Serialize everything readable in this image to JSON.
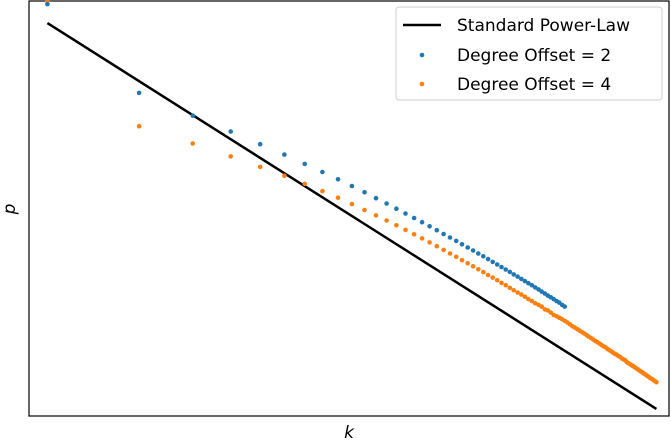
{
  "chart_data": {
    "type": "scatter",
    "xlabel": "k",
    "ylabel": "p",
    "xscale": "log",
    "yscale": "log",
    "xlim": [
      0.87,
      110
    ],
    "ylim": [
      2.2e-08,
      1.6
    ],
    "grid": false,
    "legend_position": "top-right",
    "legend": [
      "Standard Power-Law",
      "Degree Offset = 2",
      "Degree Offset = 4"
    ],
    "line": {
      "name": "Standard Power-Law",
      "x": [
        1,
        100
      ],
      "y": [
        0.61,
        3e-08
      ],
      "color": "#000000"
    },
    "series": [
      {
        "name": "Degree Offset = 2",
        "color": "#1f77b4",
        "x": [
          1,
          2,
          3,
          4,
          5,
          6,
          7,
          8,
          9,
          10,
          11,
          12,
          13,
          14,
          15,
          16,
          17,
          18,
          19,
          20,
          21,
          22,
          23,
          24,
          25,
          26,
          27,
          28,
          29,
          30,
          31,
          32,
          33,
          34,
          35,
          36,
          37,
          38,
          39,
          40,
          41,
          42,
          43,
          44,
          45,
          46,
          47,
          48,
          49,
          50
        ],
        "y": [
          1.4,
          0.029,
          0.0108,
          0.0054,
          0.0031,
          0.00197,
          0.00131,
          0.00092,
          0.00067,
          0.0005,
          0.00038,
          0.000294,
          0.000233,
          0.000186,
          0.000151,
          0.000124,
          0.000103,
          8.62e-05,
          7.27e-05,
          6.18e-05,
          5.29e-05,
          4.56e-05,
          3.94e-05,
          3.43e-05,
          3e-05,
          2.64e-05,
          2.33e-05,
          2.06e-05,
          1.83e-05,
          1.63e-05,
          1.46e-05,
          1.31e-05,
          1.18e-05,
          1.06e-05,
          9.6e-06,
          8.7e-06,
          7.9e-06,
          7.2e-06,
          6.6e-06,
          6e-06,
          5.5e-06,
          5e-06,
          4.6e-06,
          4.2e-06,
          3.9e-06,
          3.6e-06,
          3.3e-06,
          3.1e-06,
          2.8e-06,
          2.6e-06
        ]
      },
      {
        "name": "Degree Offset = 4",
        "color": "#ff7f0e",
        "x": [
          1,
          2,
          3,
          4,
          5,
          6,
          7,
          8,
          9,
          10,
          11,
          12,
          13,
          14,
          15,
          16,
          17,
          18,
          19,
          20,
          21,
          22,
          23,
          24,
          25,
          26,
          27,
          28,
          29,
          30,
          31,
          32,
          33,
          34,
          35,
          36,
          37,
          38,
          39,
          40,
          41,
          42,
          43,
          44,
          45,
          46,
          47,
          48,
          49,
          50,
          51,
          52,
          53,
          54,
          55,
          56,
          57,
          58,
          59,
          60,
          61,
          62,
          63,
          64,
          65,
          66,
          67,
          68,
          69,
          70,
          71,
          72,
          73,
          74,
          75,
          76,
          77,
          78,
          79,
          80,
          81,
          82,
          83,
          84,
          85,
          86,
          87,
          88,
          89,
          90,
          91,
          92,
          93,
          94,
          95,
          96,
          97,
          98,
          99,
          100
        ],
        "y": [
          1.6,
          0.0068,
          0.0032,
          0.00182,
          0.00115,
          0.00078,
          0.00055,
          0.0004,
          0.0003,
          0.000227,
          0.000176,
          0.000139,
          0.000111,
          9.02e-05,
          7.38e-05,
          6.1e-05,
          5.09e-05,
          4.27e-05,
          3.62e-05,
          3.08e-05,
          2.64e-05,
          2.28e-05,
          1.97e-05,
          1.72e-05,
          1.51e-05,
          1.32e-05,
          1.17e-05,
          1.03e-05,
          9.2e-06,
          8.2e-06,
          7.3e-06,
          6.6e-06,
          5.9e-06,
          5.3e-06,
          4.8e-06,
          4.4e-06,
          4e-06,
          3.6e-06,
          3.3e-06,
          3e-06,
          2.8e-06,
          2.6e-06,
          2.3e-06,
          2.2e-06,
          2e-06,
          1.8e-06,
          1.7e-06,
          1.6e-06,
          1.5e-06,
          1.4e-06,
          1.3e-06,
          1.2e-06,
          1.1e-06,
          1.04e-06,
          9.7e-07,
          9.1e-07,
          8.5e-07,
          8e-07,
          7.5e-07,
          7e-07,
          6.6e-07,
          6.2e-07,
          5.8e-07,
          5.5e-07,
          5.2e-07,
          4.9e-07,
          4.6e-07,
          4.4e-07,
          4.1e-07,
          3.9e-07,
          3.7e-07,
          3.5e-07,
          3.3e-07,
          3.2e-07,
          3e-07,
          2.9e-07,
          2.7e-07,
          2.6e-07,
          2.5e-07,
          2.3e-07,
          2.2e-07,
          2.1e-07,
          2e-07,
          1.92e-07,
          1.83e-07,
          1.75e-07,
          1.67e-07,
          1.6e-07,
          1.53e-07,
          1.46e-07,
          1.4e-07,
          1.34e-07,
          1.29e-07,
          1.23e-07,
          1.18e-07,
          1.13e-07,
          1.09e-07,
          1.04e-07,
          1e-07,
          9.6e-08
        ]
      }
    ]
  }
}
